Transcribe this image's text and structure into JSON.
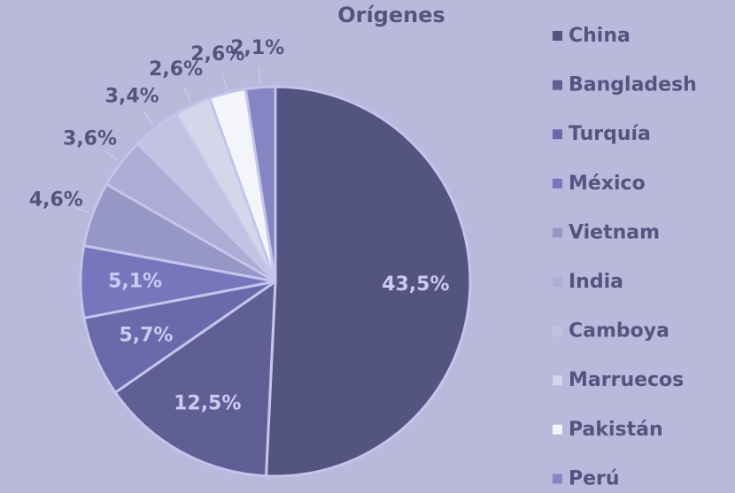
{
  "chart_data": {
    "type": "pie",
    "title": "Orígenes",
    "categories": [
      "China",
      "Bangladesh",
      "Turquía",
      "México",
      "Vietnam",
      "India",
      "Camboya",
      "Marruecos",
      "Pakistán",
      "Perú"
    ],
    "values": [
      43.5,
      12.5,
      5.7,
      5.1,
      4.6,
      3.6,
      3.4,
      2.6,
      2.6,
      2.1
    ],
    "value_labels": [
      "43,5%",
      "12,5%",
      "5,7%",
      "5,1%",
      "4,6%",
      "3,6%",
      "3,4%",
      "2,6%",
      "2,6%",
      "2,1%"
    ],
    "colors": [
      "#545480",
      "#5f5f96",
      "#6a6aaa",
      "#7676bc",
      "#9797c6",
      "#acacd4",
      "#c2c2e0",
      "#d6d6eb",
      "#f4f4fb",
      "#8585c4"
    ],
    "legend": "right"
  }
}
